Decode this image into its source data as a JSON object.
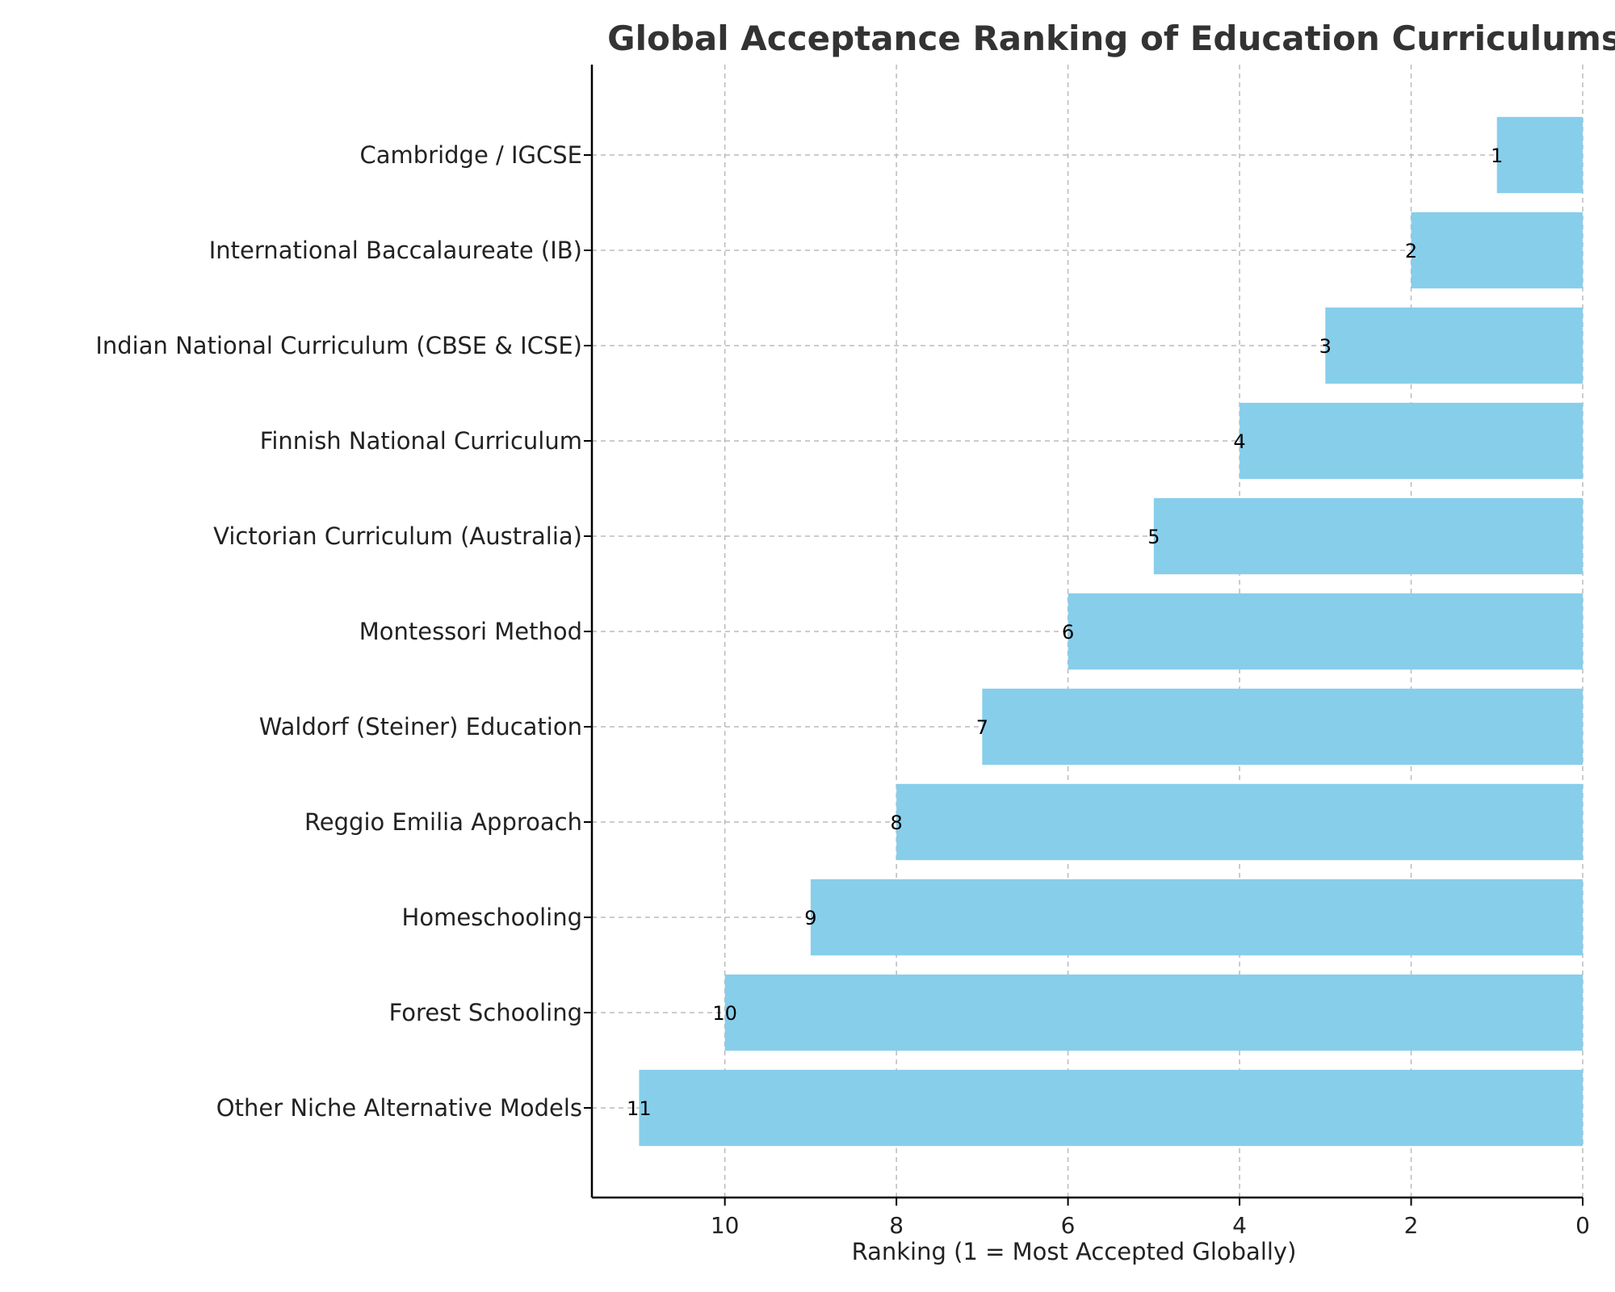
{
  "chart_data": {
    "type": "bar",
    "orientation": "horizontal",
    "title": "Global Acceptance Ranking of Education Curriculums",
    "xlabel": "Ranking (1 = Most Accepted Globally)",
    "ylabel": "",
    "xlim": [
      11.55,
      0
    ],
    "x_axis_inverted": true,
    "xticks": [
      10,
      8,
      6,
      4,
      2,
      0
    ],
    "grid": true,
    "bar_color": "#87CEEB",
    "categories": [
      "Cambridge / IGCSE",
      "International Baccalaureate (IB)",
      "Indian National Curriculum (CBSE & ICSE)",
      "Finnish National Curriculum",
      "Victorian Curriculum (Australia)",
      "Montessori Method",
      "Waldorf (Steiner) Education",
      "Reggio Emilia Approach",
      "Homeschooling",
      "Forest Schooling",
      "Other Niche Alternative Models"
    ],
    "values": [
      1,
      2,
      3,
      4,
      5,
      6,
      7,
      8,
      9,
      10,
      11
    ]
  }
}
